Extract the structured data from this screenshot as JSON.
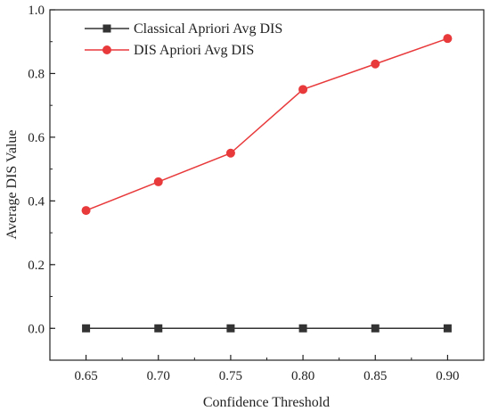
{
  "chart_data": {
    "type": "line",
    "title": "",
    "xlabel": "Confidence Threshold",
    "ylabel": "Average DIS Value",
    "x": [
      0.65,
      0.7,
      0.75,
      0.8,
      0.85,
      0.9
    ],
    "x_tick_labels": [
      "0.65",
      "0.70",
      "0.75",
      "0.80",
      "0.85",
      "0.90"
    ],
    "xlim": [
      0.625,
      0.925
    ],
    "ylim": [
      -0.1,
      1.0
    ],
    "y_ticks": [
      0.0,
      0.2,
      0.4,
      0.6,
      0.8,
      1.0
    ],
    "y_tick_labels": [
      "0.0",
      "0.2",
      "0.4",
      "0.6",
      "0.8",
      "1.0"
    ],
    "grid": false,
    "legend_position": "top-left",
    "series": [
      {
        "name": "Classical Apriori Avg DIS",
        "values": [
          0.0,
          0.0,
          0.0,
          0.0,
          0.0,
          0.0
        ],
        "color": "#333333",
        "marker": "square"
      },
      {
        "name": "DIS Apriori Avg DIS",
        "values": [
          0.37,
          0.46,
          0.55,
          0.75,
          0.83,
          0.91
        ],
        "color": "#e8393b",
        "marker": "circle"
      }
    ]
  }
}
